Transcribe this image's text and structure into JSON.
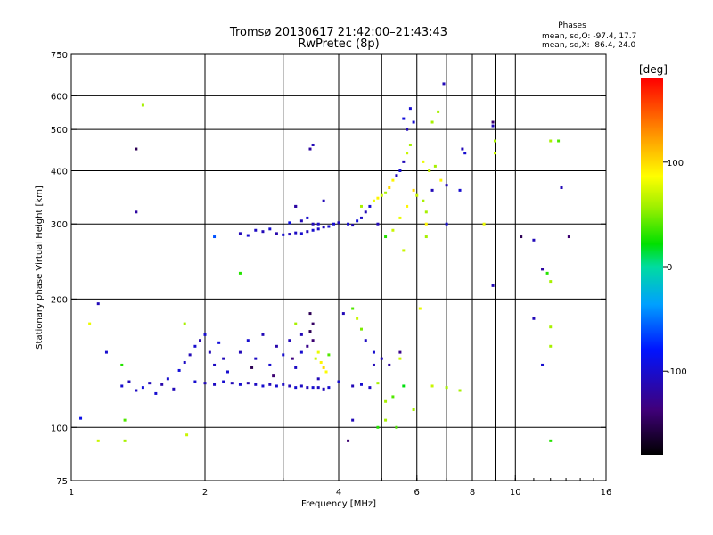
{
  "chart_data": {
    "type": "scatter",
    "title": "Tromsø 20130617 21:42:00–21:43:43",
    "subtitle": "RwPretec (8p)",
    "xlabel": "Frequency [MHz]",
    "ylabel": "Stationary phase Virtual Height [km]",
    "x_scale": "log",
    "y_scale": "log",
    "xlim": [
      1,
      16
    ],
    "ylim": [
      75,
      750
    ],
    "x_ticks": [
      1,
      2,
      4,
      6,
      8,
      10,
      16
    ],
    "x_tick_labels": [
      "1",
      "2",
      "4",
      "6",
      "8",
      "10",
      "16"
    ],
    "x_minor_gridlines": [
      3,
      5,
      7,
      9
    ],
    "y_ticks": [
      75,
      100,
      200,
      300,
      400,
      500,
      600,
      750
    ],
    "y_tick_labels": [
      "75",
      "100",
      "200",
      "300",
      "400",
      "500",
      "600",
      "750"
    ],
    "grid": true,
    "legend": {
      "title": "Phases",
      "lines": [
        "mean, sd,O: -97.4, 17.7",
        "mean, sd,X:  86.4, 24.0"
      ]
    },
    "colorbar": {
      "label": "[deg]",
      "range": [
        -180,
        180
      ],
      "ticks": [
        100,
        0,
        -100
      ],
      "tick_labels": [
        "100",
        "0",
        "-100"
      ]
    },
    "points": [
      [
        1.45,
        570,
        60
      ],
      [
        1.4,
        450,
        -150
      ],
      [
        1.4,
        320,
        -120
      ],
      [
        1.15,
        195,
        -110
      ],
      [
        1.1,
        175,
        80
      ],
      [
        1.2,
        150,
        -100
      ],
      [
        1.05,
        105,
        -90
      ],
      [
        1.15,
        93,
        70
      ],
      [
        1.3,
        140,
        30
      ],
      [
        1.32,
        104,
        40
      ],
      [
        1.32,
        93,
        60
      ],
      [
        1.82,
        96,
        70
      ],
      [
        1.8,
        175,
        60
      ],
      [
        2.1,
        280,
        -60
      ],
      [
        2.4,
        230,
        30
      ],
      [
        1.3,
        125,
        -100
      ],
      [
        1.35,
        128,
        -110
      ],
      [
        1.4,
        122,
        -105
      ],
      [
        1.45,
        124,
        -95
      ],
      [
        1.5,
        127,
        -110
      ],
      [
        1.55,
        120,
        -100
      ],
      [
        1.6,
        126,
        -115
      ],
      [
        1.65,
        130,
        -100
      ],
      [
        1.7,
        123,
        -110
      ],
      [
        1.75,
        136,
        -95
      ],
      [
        1.8,
        142,
        -105
      ],
      [
        1.85,
        148,
        -110
      ],
      [
        1.9,
        155,
        -100
      ],
      [
        1.95,
        160,
        -115
      ],
      [
        2.0,
        165,
        -100
      ],
      [
        2.05,
        150,
        -110
      ],
      [
        2.1,
        140,
        -105
      ],
      [
        2.15,
        158,
        -95
      ],
      [
        2.2,
        145,
        -110
      ],
      [
        2.25,
        135,
        -100
      ],
      [
        1.9,
        128,
        -100
      ],
      [
        2.0,
        127,
        -110
      ],
      [
        2.1,
        126,
        -105
      ],
      [
        2.2,
        128,
        -100
      ],
      [
        2.3,
        127,
        -110
      ],
      [
        2.4,
        126,
        -100
      ],
      [
        2.5,
        127,
        -115
      ],
      [
        2.6,
        126,
        -105
      ],
      [
        2.7,
        125,
        -100
      ],
      [
        2.8,
        126,
        -110
      ],
      [
        2.9,
        125,
        -100
      ],
      [
        3.0,
        126,
        -105
      ],
      [
        3.1,
        125,
        -110
      ],
      [
        3.2,
        124,
        -100
      ],
      [
        3.3,
        125,
        -105
      ],
      [
        3.4,
        124,
        -110
      ],
      [
        3.5,
        124,
        -100
      ],
      [
        3.6,
        124,
        -105
      ],
      [
        3.7,
        123,
        -110
      ],
      [
        3.8,
        124,
        -100
      ],
      [
        2.4,
        150,
        -110
      ],
      [
        2.5,
        160,
        -100
      ],
      [
        2.6,
        145,
        -105
      ],
      [
        2.7,
        165,
        -110
      ],
      [
        2.8,
        140,
        -100
      ],
      [
        2.9,
        155,
        -115
      ],
      [
        3.0,
        148,
        -100
      ],
      [
        3.1,
        160,
        -110
      ],
      [
        3.2,
        138,
        -105
      ],
      [
        3.3,
        150,
        -100
      ],
      [
        2.55,
        138,
        -150
      ],
      [
        2.85,
        132,
        -140
      ],
      [
        3.15,
        145,
        -135
      ],
      [
        3.45,
        185,
        -150
      ],
      [
        3.5,
        175,
        -145
      ],
      [
        3.45,
        168,
        -150
      ],
      [
        3.5,
        160,
        -140
      ],
      [
        3.4,
        155,
        -130
      ],
      [
        3.6,
        150,
        80
      ],
      [
        3.65,
        142,
        90
      ],
      [
        3.7,
        138,
        100
      ],
      [
        3.75,
        135,
        85
      ],
      [
        3.55,
        145,
        70
      ],
      [
        3.8,
        148,
        40
      ],
      [
        3.6,
        130,
        -110
      ],
      [
        3.3,
        165,
        -110
      ],
      [
        3.2,
        175,
        60
      ],
      [
        2.4,
        285,
        -110
      ],
      [
        2.5,
        282,
        -100
      ],
      [
        2.6,
        290,
        -105
      ],
      [
        2.7,
        288,
        -110
      ],
      [
        2.8,
        292,
        -100
      ],
      [
        2.9,
        285,
        -115
      ],
      [
        3.0,
        283,
        -100
      ],
      [
        3.1,
        284,
        -110
      ],
      [
        3.2,
        286,
        -105
      ],
      [
        3.3,
        285,
        -100
      ],
      [
        3.4,
        288,
        -110
      ],
      [
        3.5,
        290,
        -100
      ],
      [
        3.6,
        292,
        -105
      ],
      [
        3.7,
        295,
        -110
      ],
      [
        3.8,
        296,
        -100
      ],
      [
        3.3,
        305,
        -110
      ],
      [
        3.4,
        310,
        -100
      ],
      [
        3.5,
        300,
        -110
      ],
      [
        3.6,
        300,
        -105
      ],
      [
        3.9,
        300,
        -100
      ],
      [
        4.0,
        302,
        -110
      ],
      [
        3.1,
        302,
        -90
      ],
      [
        3.2,
        330,
        -110
      ],
      [
        3.45,
        450,
        -120
      ],
      [
        3.5,
        460,
        -110
      ],
      [
        3.2,
        330,
        -120
      ],
      [
        3.7,
        340,
        -110
      ],
      [
        4.2,
        300,
        -100
      ],
      [
        4.3,
        298,
        -110
      ],
      [
        4.4,
        305,
        -95
      ],
      [
        4.5,
        310,
        -105
      ],
      [
        4.6,
        320,
        -110
      ],
      [
        4.7,
        330,
        -100
      ],
      [
        4.8,
        340,
        80
      ],
      [
        4.9,
        345,
        90
      ],
      [
        5.0,
        350,
        70
      ],
      [
        5.1,
        355,
        60
      ],
      [
        5.2,
        365,
        100
      ],
      [
        5.3,
        380,
        90
      ],
      [
        5.4,
        390,
        -110
      ],
      [
        5.5,
        400,
        -100
      ],
      [
        5.6,
        420,
        -110
      ],
      [
        5.7,
        440,
        70
      ],
      [
        5.8,
        460,
        60
      ],
      [
        4.5,
        330,
        60
      ],
      [
        4.9,
        300,
        -110
      ],
      [
        5.1,
        280,
        30
      ],
      [
        5.3,
        290,
        70
      ],
      [
        5.5,
        310,
        80
      ],
      [
        5.7,
        330,
        90
      ],
      [
        5.9,
        360,
        100
      ],
      [
        6.0,
        350,
        70
      ],
      [
        6.2,
        340,
        60
      ],
      [
        6.3,
        320,
        60
      ],
      [
        5.7,
        500,
        -110
      ],
      [
        5.8,
        560,
        -100
      ],
      [
        5.6,
        530,
        -95
      ],
      [
        5.9,
        520,
        -100
      ],
      [
        6.5,
        520,
        60
      ],
      [
        6.9,
        640,
        -110
      ],
      [
        6.7,
        550,
        60
      ],
      [
        6.2,
        420,
        80
      ],
      [
        6.4,
        400,
        70
      ],
      [
        6.6,
        410,
        60
      ],
      [
        6.8,
        380,
        90
      ],
      [
        7.0,
        370,
        -110
      ],
      [
        7.5,
        360,
        -100
      ],
      [
        7.6,
        450,
        -110
      ],
      [
        7.7,
        440,
        -100
      ],
      [
        6.5,
        360,
        -110
      ],
      [
        6.3,
        300,
        90
      ],
      [
        7.0,
        300,
        -100
      ],
      [
        8.9,
        520,
        -140
      ],
      [
        8.9,
        510,
        -110
      ],
      [
        9.0,
        470,
        60
      ],
      [
        9.0,
        440,
        70
      ],
      [
        8.9,
        215,
        -110
      ],
      [
        8.5,
        300,
        80
      ],
      [
        10.3,
        280,
        -150
      ],
      [
        11.0,
        275,
        -110
      ],
      [
        11.5,
        235,
        -120
      ],
      [
        11.8,
        230,
        30
      ],
      [
        12.0,
        220,
        60
      ],
      [
        12.5,
        470,
        40
      ],
      [
        12.0,
        470,
        60
      ],
      [
        12.7,
        365,
        -110
      ],
      [
        13.2,
        280,
        -140
      ],
      [
        11.0,
        180,
        -110
      ],
      [
        11.5,
        140,
        -100
      ],
      [
        12.0,
        172,
        60
      ],
      [
        12.0,
        155,
        60
      ],
      [
        12.0,
        93,
        30
      ],
      [
        4.1,
        185,
        -110
      ],
      [
        4.3,
        190,
        40
      ],
      [
        4.4,
        180,
        70
      ],
      [
        4.5,
        170,
        50
      ],
      [
        4.6,
        160,
        -105
      ],
      [
        4.8,
        150,
        -100
      ],
      [
        5.0,
        145,
        -110
      ],
      [
        5.2,
        140,
        -120
      ],
      [
        5.5,
        150,
        -130
      ],
      [
        5.6,
        125,
        20
      ],
      [
        5.3,
        118,
        40
      ],
      [
        5.1,
        115,
        60
      ],
      [
        4.3,
        125,
        -110
      ],
      [
        4.5,
        126,
        -100
      ],
      [
        4.7,
        124,
        -105
      ],
      [
        4.9,
        127,
        60
      ],
      [
        5.5,
        145,
        70
      ],
      [
        6.5,
        125,
        70
      ],
      [
        7.0,
        124,
        60
      ],
      [
        5.1,
        104,
        60
      ],
      [
        5.4,
        100,
        40
      ],
      [
        4.3,
        104,
        -110
      ],
      [
        4.2,
        93,
        -140
      ],
      [
        4.9,
        100,
        30
      ],
      [
        5.9,
        110,
        60
      ],
      [
        7.5,
        122,
        60
      ],
      [
        6.1,
        190,
        80
      ],
      [
        5.6,
        260,
        70
      ],
      [
        6.3,
        280,
        60
      ],
      [
        4.8,
        140,
        -110
      ],
      [
        4.0,
        128,
        -100
      ]
    ]
  }
}
